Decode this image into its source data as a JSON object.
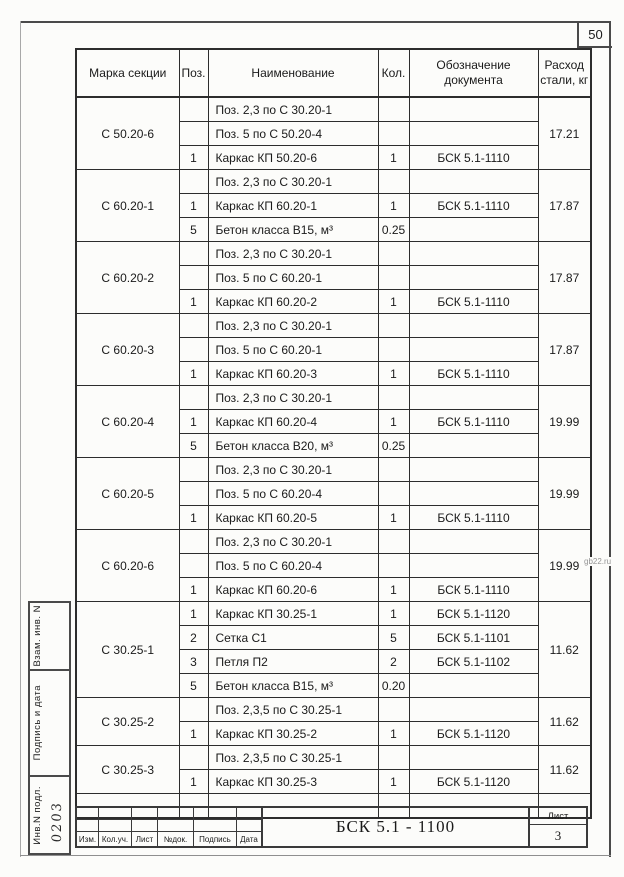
{
  "page": {
    "page_number": "50",
    "watermark": "gb22.ru"
  },
  "table": {
    "headers": {
      "mark": "Марка секции",
      "pos": "Поз.",
      "name": "Наименование",
      "qty": "Кол.",
      "doc": "Обозначение документа",
      "steel": "Расход стали, кг"
    },
    "groups": [
      {
        "mark": "С 50.20-6",
        "steel": "17.21",
        "rows": [
          {
            "pos": "",
            "name": "Поз. 2,3 по С 30.20-1",
            "qty": "",
            "doc": ""
          },
          {
            "pos": "",
            "name": "Поз. 5 по С 50.20-4",
            "qty": "",
            "doc": ""
          },
          {
            "pos": "1",
            "name": "Каркас КП 50.20-6",
            "qty": "1",
            "doc": "БСК 5.1-1110"
          }
        ]
      },
      {
        "mark": "С 60.20-1",
        "steel": "17.87",
        "rows": [
          {
            "pos": "",
            "name": "Поз. 2,3 по С 30.20-1",
            "qty": "",
            "doc": ""
          },
          {
            "pos": "1",
            "name": "Каркас КП 60.20-1",
            "qty": "1",
            "doc": "БСК 5.1-1110"
          },
          {
            "pos": "5",
            "name": "Бетон класса В15, м³",
            "qty": "0.25",
            "doc": ""
          }
        ]
      },
      {
        "mark": "С 60.20-2",
        "steel": "17.87",
        "rows": [
          {
            "pos": "",
            "name": "Поз. 2,3 по С 30.20-1",
            "qty": "",
            "doc": ""
          },
          {
            "pos": "",
            "name": "Поз. 5 по С 60.20-1",
            "qty": "",
            "doc": ""
          },
          {
            "pos": "1",
            "name": "Каркас КП 60.20-2",
            "qty": "1",
            "doc": "БСК 5.1-1110"
          }
        ]
      },
      {
        "mark": "С 60.20-3",
        "steel": "17.87",
        "rows": [
          {
            "pos": "",
            "name": "Поз. 2,3 по С 30.20-1",
            "qty": "",
            "doc": ""
          },
          {
            "pos": "",
            "name": "Поз. 5 по С 60.20-1",
            "qty": "",
            "doc": ""
          },
          {
            "pos": "1",
            "name": "Каркас КП 60.20-3",
            "qty": "1",
            "doc": "БСК 5.1-1110"
          }
        ]
      },
      {
        "mark": "С 60.20-4",
        "steel": "19.99",
        "rows": [
          {
            "pos": "",
            "name": "Поз. 2,3 по С 30.20-1",
            "qty": "",
            "doc": ""
          },
          {
            "pos": "1",
            "name": "Каркас КП 60.20-4",
            "qty": "1",
            "doc": "БСК 5.1-1110"
          },
          {
            "pos": "5",
            "name": "Бетон класса В20, м³",
            "qty": "0.25",
            "doc": ""
          }
        ]
      },
      {
        "mark": "С 60.20-5",
        "steel": "19.99",
        "rows": [
          {
            "pos": "",
            "name": "Поз. 2,3 по С 30.20-1",
            "qty": "",
            "doc": ""
          },
          {
            "pos": "",
            "name": "Поз. 5 по С 60.20-4",
            "qty": "",
            "doc": ""
          },
          {
            "pos": "1",
            "name": "Каркас КП 60.20-5",
            "qty": "1",
            "doc": "БСК 5.1-1110"
          }
        ]
      },
      {
        "mark": "С 60.20-6",
        "steel": "19.99",
        "rows": [
          {
            "pos": "",
            "name": "Поз. 2,3 по С 30.20-1",
            "qty": "",
            "doc": ""
          },
          {
            "pos": "",
            "name": "Поз. 5 по С 60.20-4",
            "qty": "",
            "doc": ""
          },
          {
            "pos": "1",
            "name": "Каркас КП 60.20-6",
            "qty": "1",
            "doc": "БСК 5.1-1110"
          }
        ]
      },
      {
        "mark": "С 30.25-1",
        "steel": "11.62",
        "rows": [
          {
            "pos": "1",
            "name": "Каркас КП 30.25-1",
            "qty": "1",
            "doc": "БСК 5.1-1120"
          },
          {
            "pos": "2",
            "name": "Сетка С1",
            "qty": "5",
            "doc": "БСК 5.1-1101"
          },
          {
            "pos": "3",
            "name": "Петля П2",
            "qty": "2",
            "doc": "БСК 5.1-1102"
          },
          {
            "pos": "5",
            "name": "Бетон класса В15, м³",
            "qty": "0.20",
            "doc": ""
          }
        ]
      },
      {
        "mark": "С 30.25-2",
        "steel": "11.62",
        "rows": [
          {
            "pos": "",
            "name": "Поз. 2,3,5 по С 30.25-1",
            "qty": "",
            "doc": ""
          },
          {
            "pos": "1",
            "name": "Каркас КП 30.25-2",
            "qty": "1",
            "doc": "БСК 5.1-1120"
          }
        ]
      },
      {
        "mark": "С 30.25-3",
        "steel": "11.62",
        "rows": [
          {
            "pos": "",
            "name": "Поз. 2,3,5 по С 30.25-1",
            "qty": "",
            "doc": ""
          },
          {
            "pos": "1",
            "name": "Каркас КП 30.25-3",
            "qty": "1",
            "doc": "БСК 5.1-1120"
          }
        ]
      },
      {
        "mark": "",
        "steel": "",
        "rows": [
          {
            "pos": "",
            "name": "",
            "qty": "",
            "doc": ""
          }
        ]
      }
    ]
  },
  "stamp": {
    "rotated_labels": [
      "Взам. инв. N",
      "Подпись и дата",
      "Инв.N подл."
    ],
    "handwritten": "0203"
  },
  "title_block": {
    "columns": [
      "Изм.",
      "Кол.уч.",
      "Лист",
      "№док.",
      "Подпись",
      "Дата"
    ],
    "doc_number": "БСК 5.1 - 1100",
    "sheet_label": "Лист",
    "sheet_number": "3"
  }
}
